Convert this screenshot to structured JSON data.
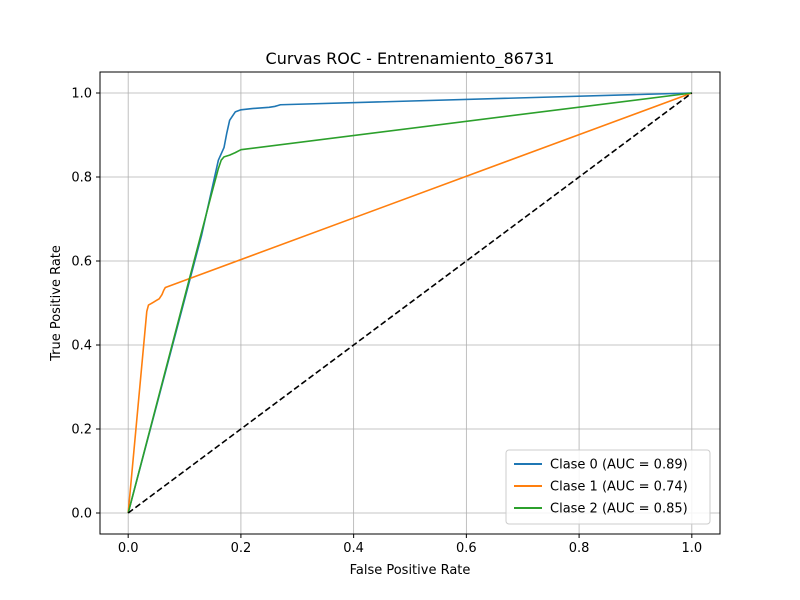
{
  "chart_data": {
    "type": "line",
    "title": "Curvas ROC - Entrenamiento_86731",
    "xlabel": "False Positive Rate",
    "ylabel": "True Positive Rate",
    "xlim": [
      -0.05,
      1.05
    ],
    "ylim": [
      -0.05,
      1.05
    ],
    "xticks": [
      0.0,
      0.2,
      0.4,
      0.6,
      0.8,
      1.0
    ],
    "yticks": [
      0.0,
      0.2,
      0.4,
      0.6,
      0.8,
      1.0
    ],
    "xtick_labels": [
      "0.0",
      "0.2",
      "0.4",
      "0.6",
      "0.8",
      "1.0"
    ],
    "ytick_labels": [
      "0.0",
      "0.2",
      "0.4",
      "0.6",
      "0.8",
      "1.0"
    ],
    "grid": true,
    "legend_position": "lower-right",
    "series": [
      {
        "name": "Clase 0 (AUC = 0.89)",
        "color": "#1f77b4",
        "x": [
          0.0,
          0.13,
          0.15,
          0.16,
          0.17,
          0.175,
          0.18,
          0.185,
          0.19,
          0.2,
          0.22,
          0.25,
          0.26,
          0.265,
          0.27,
          1.0
        ],
        "y": [
          0.0,
          0.66,
          0.78,
          0.84,
          0.87,
          0.905,
          0.935,
          0.945,
          0.955,
          0.96,
          0.963,
          0.966,
          0.968,
          0.97,
          0.972,
          1.0
        ]
      },
      {
        "name": "Clase 1 (AUC = 0.74)",
        "color": "#ff7f0e",
        "x": [
          0.0,
          0.033,
          0.036,
          0.04,
          0.045,
          0.05,
          0.055,
          0.06,
          0.063,
          0.066,
          1.0
        ],
        "y": [
          0.0,
          0.48,
          0.495,
          0.498,
          0.502,
          0.506,
          0.51,
          0.52,
          0.53,
          0.537,
          1.0
        ]
      },
      {
        "name": "Clase 2 (AUC = 0.85)",
        "color": "#2ca02c",
        "x": [
          0.0,
          0.148,
          0.152,
          0.156,
          0.16,
          0.165,
          0.17,
          0.18,
          0.19,
          0.2,
          1.0
        ],
        "y": [
          0.0,
          0.76,
          0.78,
          0.8,
          0.82,
          0.84,
          0.848,
          0.852,
          0.858,
          0.865,
          1.0
        ]
      },
      {
        "color": "#000000",
        "dashed": true,
        "x": [
          0.0,
          1.0
        ],
        "y": [
          0.0,
          1.0
        ]
      }
    ]
  }
}
